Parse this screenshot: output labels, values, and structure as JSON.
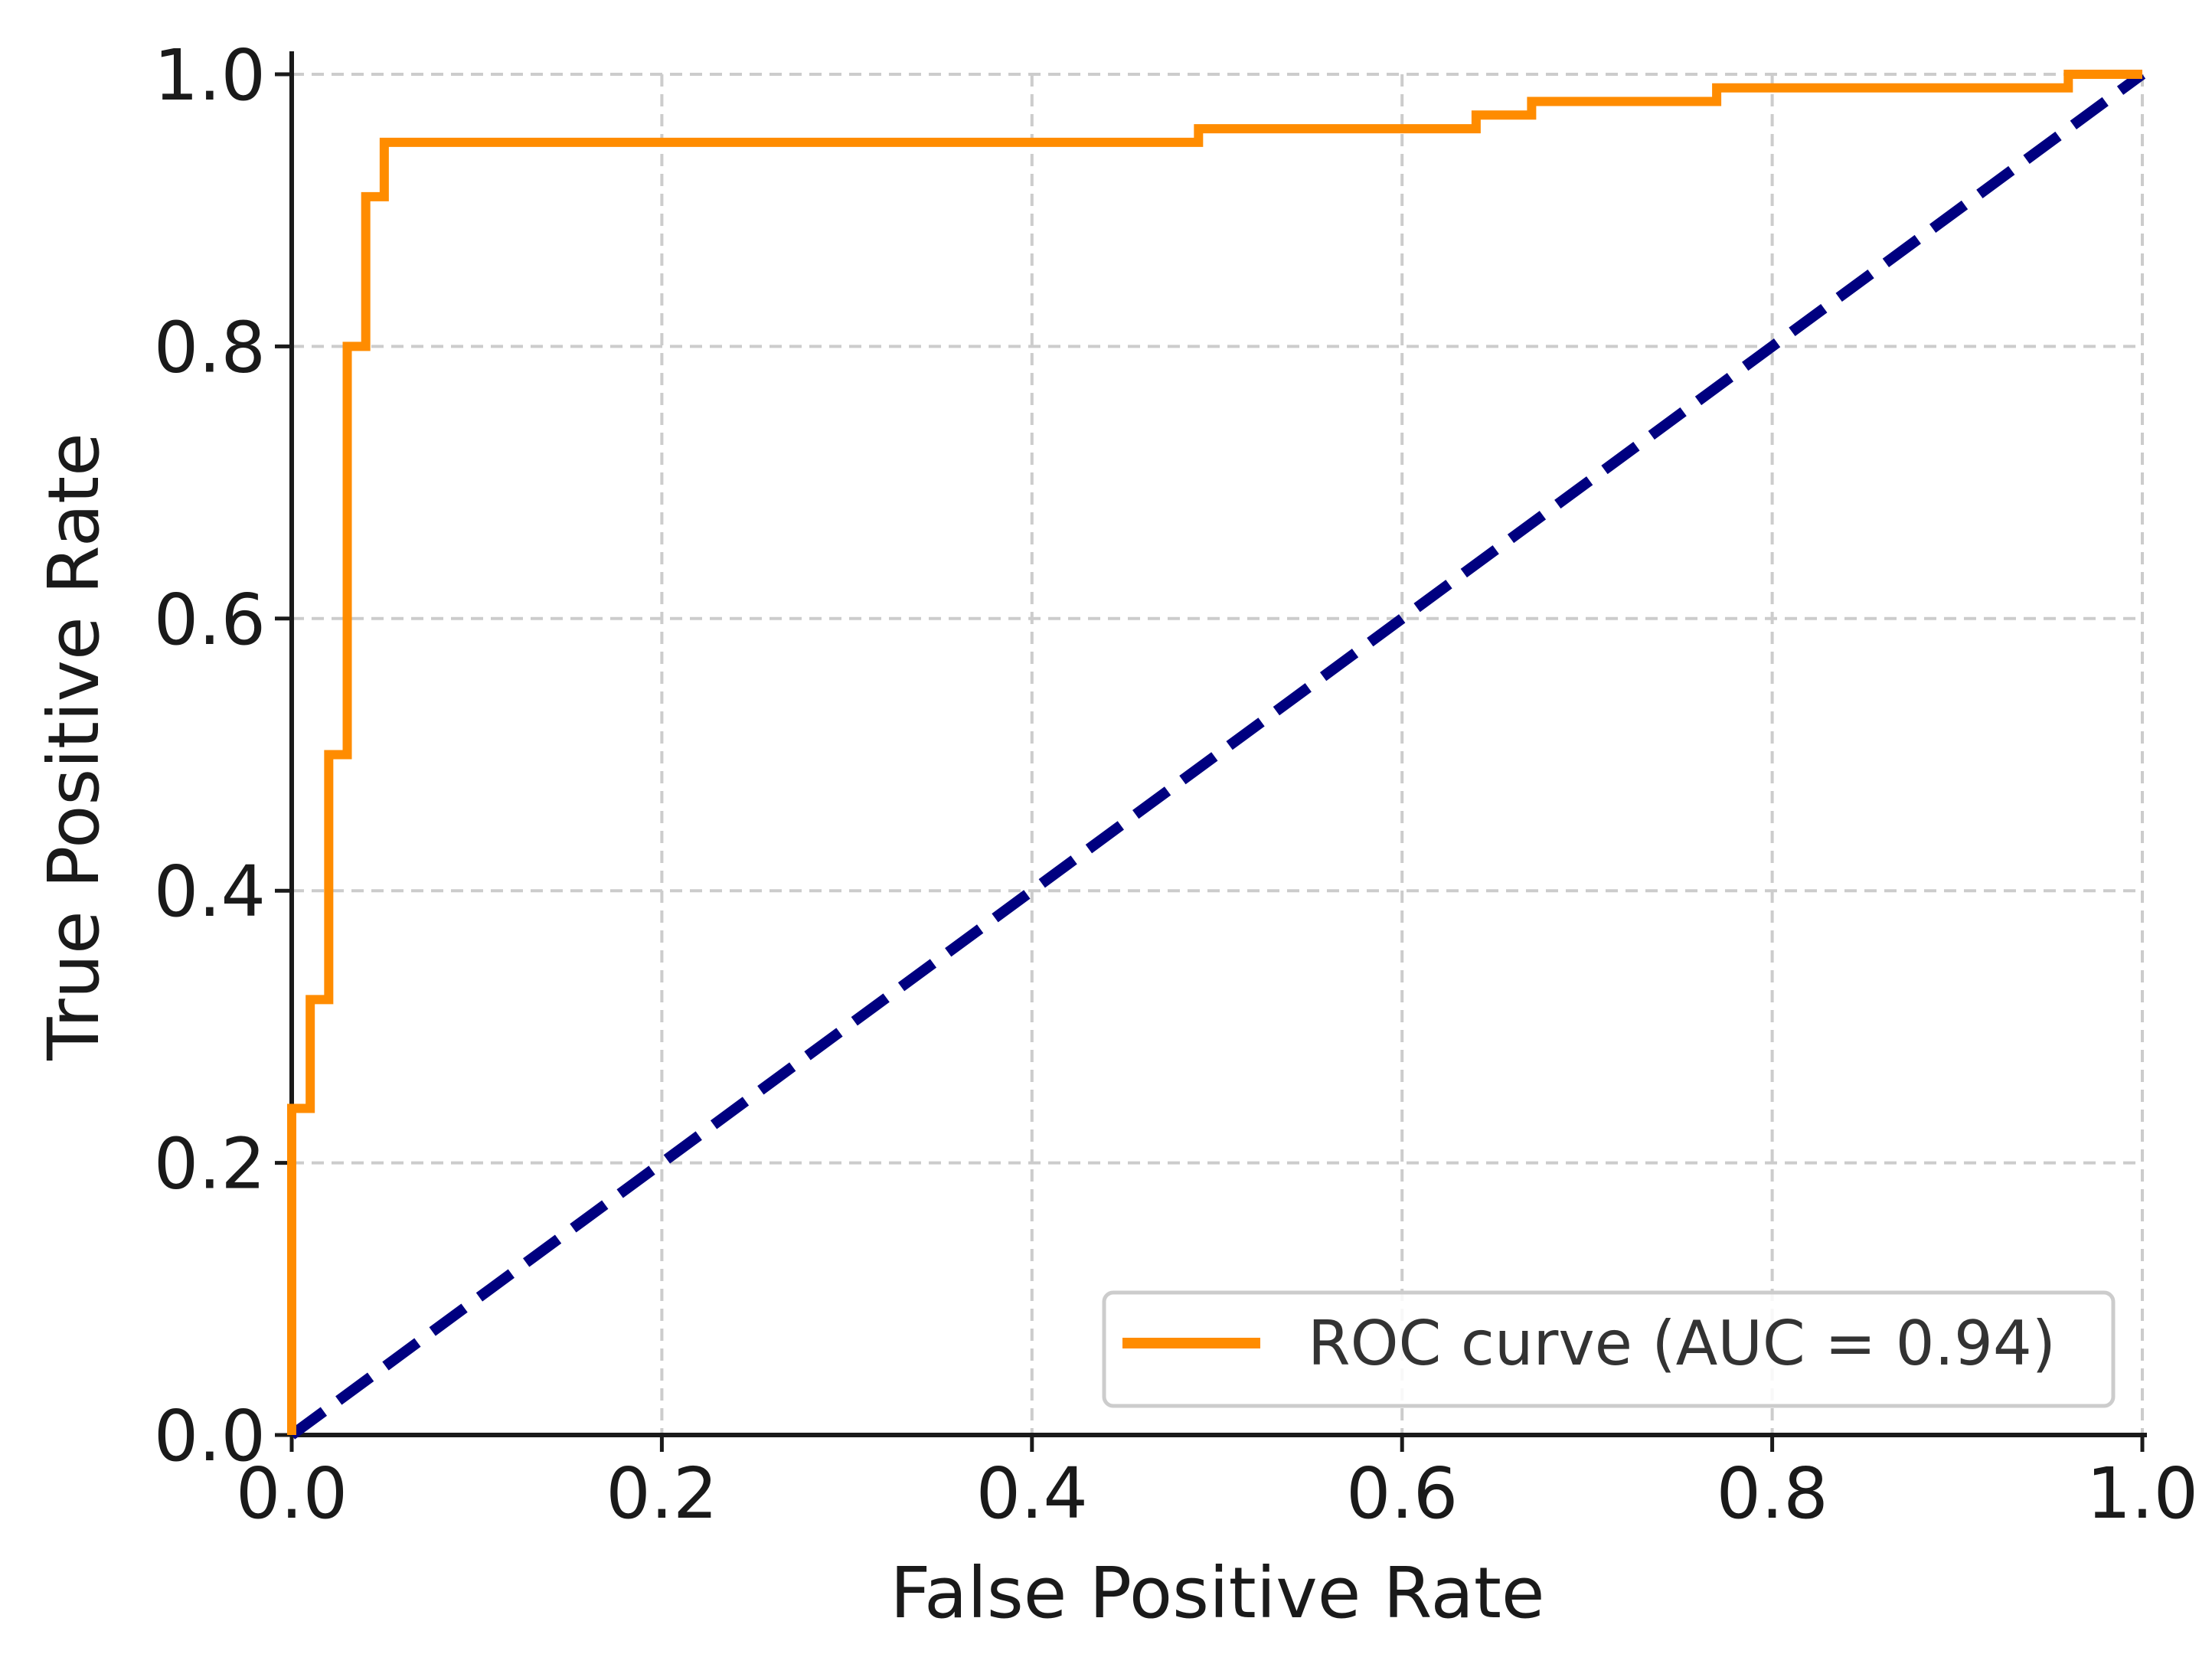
{
  "chart_data": {
    "type": "line",
    "title": "",
    "xlabel": "False Positive Rate",
    "ylabel": "True Positive Rate",
    "xlim": [
      0.0,
      1.0
    ],
    "ylim": [
      0.0,
      1.0
    ],
    "grid": true,
    "x_ticks": [
      0.0,
      0.2,
      0.4,
      0.6,
      0.8,
      1.0
    ],
    "y_ticks": [
      0.0,
      0.2,
      0.4,
      0.6,
      0.8,
      1.0
    ],
    "x_tick_labels": [
      "0.0",
      "0.2",
      "0.4",
      "0.6",
      "0.8",
      "1.0"
    ],
    "y_tick_labels": [
      "0.0",
      "0.2",
      "0.4",
      "0.6",
      "0.8",
      "1.0"
    ],
    "legend_position": "bottom-right",
    "series": [
      {
        "name": "ROC curve (AUC = 0.94)",
        "label": "ROC curve (AUC = 0.94)",
        "color": "#ff8c00",
        "style": "solid",
        "step": true,
        "x": [
          0.0,
          0.0,
          0.01,
          0.01,
          0.02,
          0.02,
          0.03,
          0.03,
          0.04,
          0.04,
          0.05,
          0.05,
          0.49,
          0.49,
          0.64,
          0.64,
          0.67,
          0.67,
          0.77,
          0.77,
          0.96,
          0.96,
          1.0
        ],
        "y": [
          0.0,
          0.24,
          0.24,
          0.32,
          0.32,
          0.5,
          0.5,
          0.8,
          0.8,
          0.91,
          0.91,
          0.95,
          0.95,
          0.96,
          0.96,
          0.97,
          0.97,
          0.98,
          0.98,
          0.99,
          0.99,
          1.0,
          1.0
        ]
      },
      {
        "name": "chance-line",
        "color": "#000080",
        "style": "dashed",
        "x": [
          0.0,
          1.0
        ],
        "y": [
          0.0,
          1.0
        ]
      }
    ]
  }
}
